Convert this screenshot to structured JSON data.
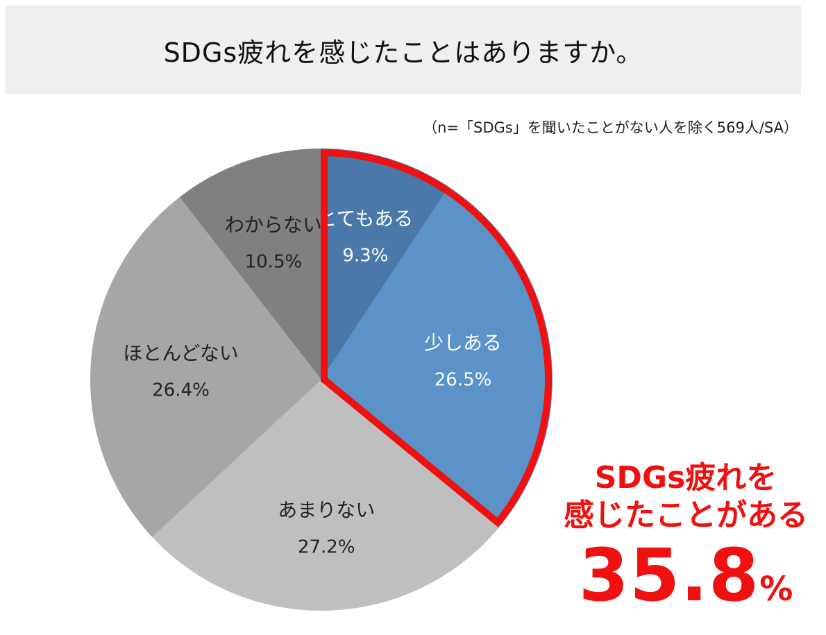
{
  "title": "SDGs疲れを感じたことはありますか。",
  "note": "（n=「SDGs」を聞いたことがない人を除く569人/SA）",
  "chart_data": {
    "type": "pie",
    "title": "SDGs疲れを感じたことはありますか。",
    "unit": "%",
    "slices": [
      {
        "label": "とてもある",
        "value": 9.3,
        "display": "9.3%",
        "color": "#4a78a8",
        "text_color": "#ffffff"
      },
      {
        "label": "少しある",
        "value": 26.5,
        "display": "26.5%",
        "color": "#5b92c8",
        "text_color": "#ffffff"
      },
      {
        "label": "あまりない",
        "value": 27.2,
        "display": "27.2%",
        "color": "#bfbfbf",
        "text_color": "#222222"
      },
      {
        "label": "ほとんどない",
        "value": 26.4,
        "display": "26.4%",
        "color": "#a6a6a6",
        "text_color": "#222222"
      },
      {
        "label": "わからない",
        "value": 10.5,
        "display": "10.5%",
        "color": "#808080",
        "text_color": "#222222"
      }
    ],
    "highlight": {
      "slices": [
        "とてもある",
        "少しある"
      ],
      "color": "#f01010"
    }
  },
  "callout": {
    "line1": "SDGs疲れを",
    "line2": "感じたことがある",
    "value": "35.8",
    "unit": "%"
  }
}
